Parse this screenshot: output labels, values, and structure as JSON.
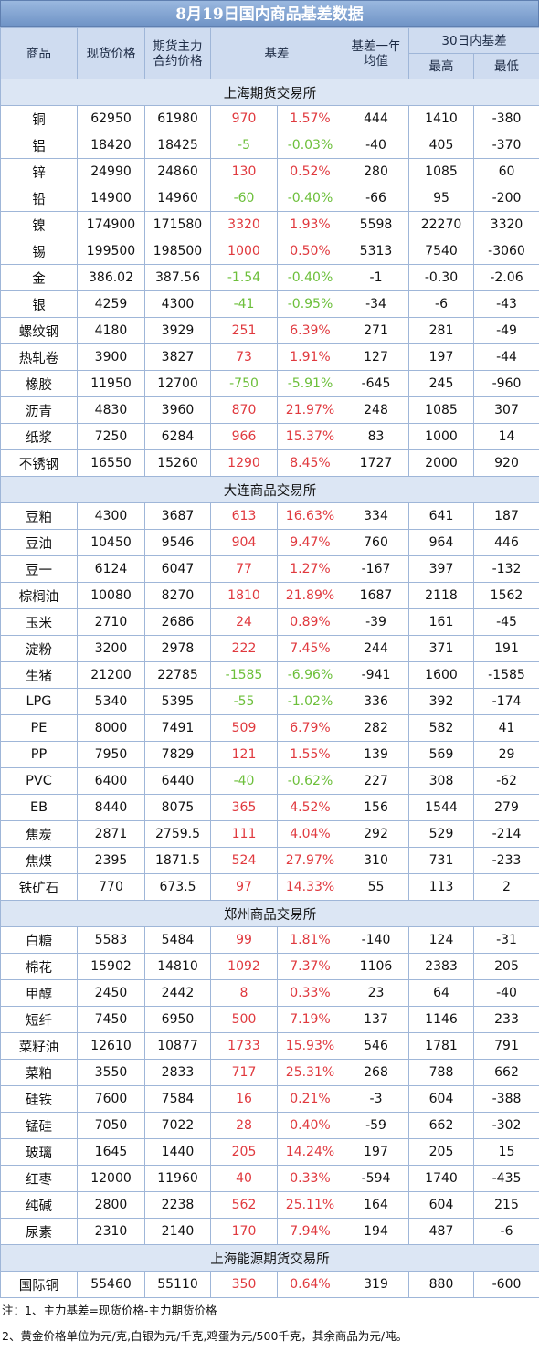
{
  "title": "8月19日国内商品基差数据",
  "headers": {
    "commodity": "商品",
    "spot": "现货价格",
    "futures": "期货主力合约价格",
    "basis": "基差",
    "avg": "基差一年均值",
    "range30": "30日内基差",
    "high": "最高",
    "low": "最低"
  },
  "colors": {
    "positive": "#e0393e",
    "negative": "#6cbf3a",
    "header_bg": "#cfdcf0",
    "title_bg": "#7f9fcf"
  },
  "sections": [
    {
      "name": "上海期货交易所",
      "rows": [
        {
          "name": "铜",
          "spot": "62950",
          "fut": "61980",
          "basis": "970",
          "pct": "1.57%",
          "avg": "444",
          "high": "1410",
          "low": "-380"
        },
        {
          "name": "铝",
          "spot": "18420",
          "fut": "18425",
          "basis": "-5",
          "pct": "-0.03%",
          "avg": "-40",
          "high": "405",
          "low": "-370"
        },
        {
          "name": "锌",
          "spot": "24990",
          "fut": "24860",
          "basis": "130",
          "pct": "0.52%",
          "avg": "280",
          "high": "1085",
          "low": "60"
        },
        {
          "name": "铅",
          "spot": "14900",
          "fut": "14960",
          "basis": "-60",
          "pct": "-0.40%",
          "avg": "-66",
          "high": "95",
          "low": "-200"
        },
        {
          "name": "镍",
          "spot": "174900",
          "fut": "171580",
          "basis": "3320",
          "pct": "1.93%",
          "avg": "5598",
          "high": "22270",
          "low": "3320"
        },
        {
          "name": "锡",
          "spot": "199500",
          "fut": "198500",
          "basis": "1000",
          "pct": "0.50%",
          "avg": "5313",
          "high": "7540",
          "low": "-3060"
        },
        {
          "name": "金",
          "spot": "386.02",
          "fut": "387.56",
          "basis": "-1.54",
          "pct": "-0.40%",
          "avg": "-1",
          "high": "-0.30",
          "low": "-2.06"
        },
        {
          "name": "银",
          "spot": "4259",
          "fut": "4300",
          "basis": "-41",
          "pct": "-0.95%",
          "avg": "-34",
          "high": "-6",
          "low": "-43"
        },
        {
          "name": "螺纹钢",
          "spot": "4180",
          "fut": "3929",
          "basis": "251",
          "pct": "6.39%",
          "avg": "271",
          "high": "281",
          "low": "-49"
        },
        {
          "name": "热轧卷",
          "spot": "3900",
          "fut": "3827",
          "basis": "73",
          "pct": "1.91%",
          "avg": "127",
          "high": "197",
          "low": "-44"
        },
        {
          "name": "橡胶",
          "spot": "11950",
          "fut": "12700",
          "basis": "-750",
          "pct": "-5.91%",
          "avg": "-645",
          "high": "245",
          "low": "-960"
        },
        {
          "name": "沥青",
          "spot": "4830",
          "fut": "3960",
          "basis": "870",
          "pct": "21.97%",
          "avg": "248",
          "high": "1085",
          "low": "307"
        },
        {
          "name": "纸浆",
          "spot": "7250",
          "fut": "6284",
          "basis": "966",
          "pct": "15.37%",
          "avg": "83",
          "high": "1000",
          "low": "14"
        },
        {
          "name": "不锈钢",
          "spot": "16550",
          "fut": "15260",
          "basis": "1290",
          "pct": "8.45%",
          "avg": "1727",
          "high": "2000",
          "low": "920"
        }
      ]
    },
    {
      "name": "大连商品交易所",
      "rows": [
        {
          "name": "豆粕",
          "spot": "4300",
          "fut": "3687",
          "basis": "613",
          "pct": "16.63%",
          "avg": "334",
          "high": "641",
          "low": "187"
        },
        {
          "name": "豆油",
          "spot": "10450",
          "fut": "9546",
          "basis": "904",
          "pct": "9.47%",
          "avg": "760",
          "high": "964",
          "low": "446"
        },
        {
          "name": "豆一",
          "spot": "6124",
          "fut": "6047",
          "basis": "77",
          "pct": "1.27%",
          "avg": "-167",
          "high": "397",
          "low": "-132"
        },
        {
          "name": "棕榈油",
          "spot": "10080",
          "fut": "8270",
          "basis": "1810",
          "pct": "21.89%",
          "avg": "1687",
          "high": "2118",
          "low": "1562"
        },
        {
          "name": "玉米",
          "spot": "2710",
          "fut": "2686",
          "basis": "24",
          "pct": "0.89%",
          "avg": "-39",
          "high": "161",
          "low": "-45"
        },
        {
          "name": "淀粉",
          "spot": "3200",
          "fut": "2978",
          "basis": "222",
          "pct": "7.45%",
          "avg": "244",
          "high": "371",
          "low": "191"
        },
        {
          "name": "生猪",
          "spot": "21200",
          "fut": "22785",
          "basis": "-1585",
          "pct": "-6.96%",
          "avg": "-941",
          "high": "1600",
          "low": "-1585"
        },
        {
          "name": "LPG",
          "spot": "5340",
          "fut": "5395",
          "basis": "-55",
          "pct": "-1.02%",
          "avg": "336",
          "high": "392",
          "low": "-174"
        },
        {
          "name": "PE",
          "spot": "8000",
          "fut": "7491",
          "basis": "509",
          "pct": "6.79%",
          "avg": "282",
          "high": "582",
          "low": "41"
        },
        {
          "name": "PP",
          "spot": "7950",
          "fut": "7829",
          "basis": "121",
          "pct": "1.55%",
          "avg": "139",
          "high": "569",
          "low": "29"
        },
        {
          "name": "PVC",
          "spot": "6400",
          "fut": "6440",
          "basis": "-40",
          "pct": "-0.62%",
          "avg": "227",
          "high": "308",
          "low": "-62"
        },
        {
          "name": "EB",
          "spot": "8440",
          "fut": "8075",
          "basis": "365",
          "pct": "4.52%",
          "avg": "156",
          "high": "1544",
          "low": "279"
        },
        {
          "name": "焦炭",
          "spot": "2871",
          "fut": "2759.5",
          "basis": "111",
          "pct": "4.04%",
          "avg": "292",
          "high": "529",
          "low": "-214"
        },
        {
          "name": "焦煤",
          "spot": "2395",
          "fut": "1871.5",
          "basis": "524",
          "pct": "27.97%",
          "avg": "310",
          "high": "731",
          "low": "-233"
        },
        {
          "name": "铁矿石",
          "spot": "770",
          "fut": "673.5",
          "basis": "97",
          "pct": "14.33%",
          "avg": "55",
          "high": "113",
          "low": "2"
        }
      ]
    },
    {
      "name": "郑州商品交易所",
      "rows": [
        {
          "name": "白糖",
          "spot": "5583",
          "fut": "5484",
          "basis": "99",
          "pct": "1.81%",
          "avg": "-140",
          "high": "124",
          "low": "-31"
        },
        {
          "name": "棉花",
          "spot": "15902",
          "fut": "14810",
          "basis": "1092",
          "pct": "7.37%",
          "avg": "1106",
          "high": "2383",
          "low": "205"
        },
        {
          "name": "甲醇",
          "spot": "2450",
          "fut": "2442",
          "basis": "8",
          "pct": "0.33%",
          "avg": "23",
          "high": "64",
          "low": "-40"
        },
        {
          "name": "短纤",
          "spot": "7450",
          "fut": "6950",
          "basis": "500",
          "pct": "7.19%",
          "avg": "137",
          "high": "1146",
          "low": "233"
        },
        {
          "name": "菜籽油",
          "spot": "12610",
          "fut": "10877",
          "basis": "1733",
          "pct": "15.93%",
          "avg": "546",
          "high": "1781",
          "low": "791"
        },
        {
          "name": "菜粕",
          "spot": "3550",
          "fut": "2833",
          "basis": "717",
          "pct": "25.31%",
          "avg": "268",
          "high": "788",
          "low": "662"
        },
        {
          "name": "硅铁",
          "spot": "7600",
          "fut": "7584",
          "basis": "16",
          "pct": "0.21%",
          "avg": "-3",
          "high": "604",
          "low": "-388"
        },
        {
          "name": "锰硅",
          "spot": "7050",
          "fut": "7022",
          "basis": "28",
          "pct": "0.40%",
          "avg": "-59",
          "high": "662",
          "low": "-302"
        },
        {
          "name": "玻璃",
          "spot": "1645",
          "fut": "1440",
          "basis": "205",
          "pct": "14.24%",
          "avg": "197",
          "high": "205",
          "low": "15"
        },
        {
          "name": "红枣",
          "spot": "12000",
          "fut": "11960",
          "basis": "40",
          "pct": "0.33%",
          "avg": "-594",
          "high": "1740",
          "low": "-435"
        },
        {
          "name": "纯碱",
          "spot": "2800",
          "fut": "2238",
          "basis": "562",
          "pct": "25.11%",
          "avg": "164",
          "high": "604",
          "low": "215"
        },
        {
          "name": "尿素",
          "spot": "2310",
          "fut": "2140",
          "basis": "170",
          "pct": "7.94%",
          "avg": "194",
          "high": "487",
          "low": "-6"
        }
      ]
    },
    {
      "name": "上海能源期货交易所",
      "rows": [
        {
          "name": "国际铜",
          "spot": "55460",
          "fut": "55110",
          "basis": "350",
          "pct": "0.64%",
          "avg": "319",
          "high": "880",
          "low": "-600"
        }
      ]
    }
  ],
  "notes": [
    "注：1、主力基差=现货价格-主力期货价格",
    "2、黄金价格单位为元/克,白银为元/千克,鸡蛋为元/500千克，其余商品为元/吨。"
  ]
}
